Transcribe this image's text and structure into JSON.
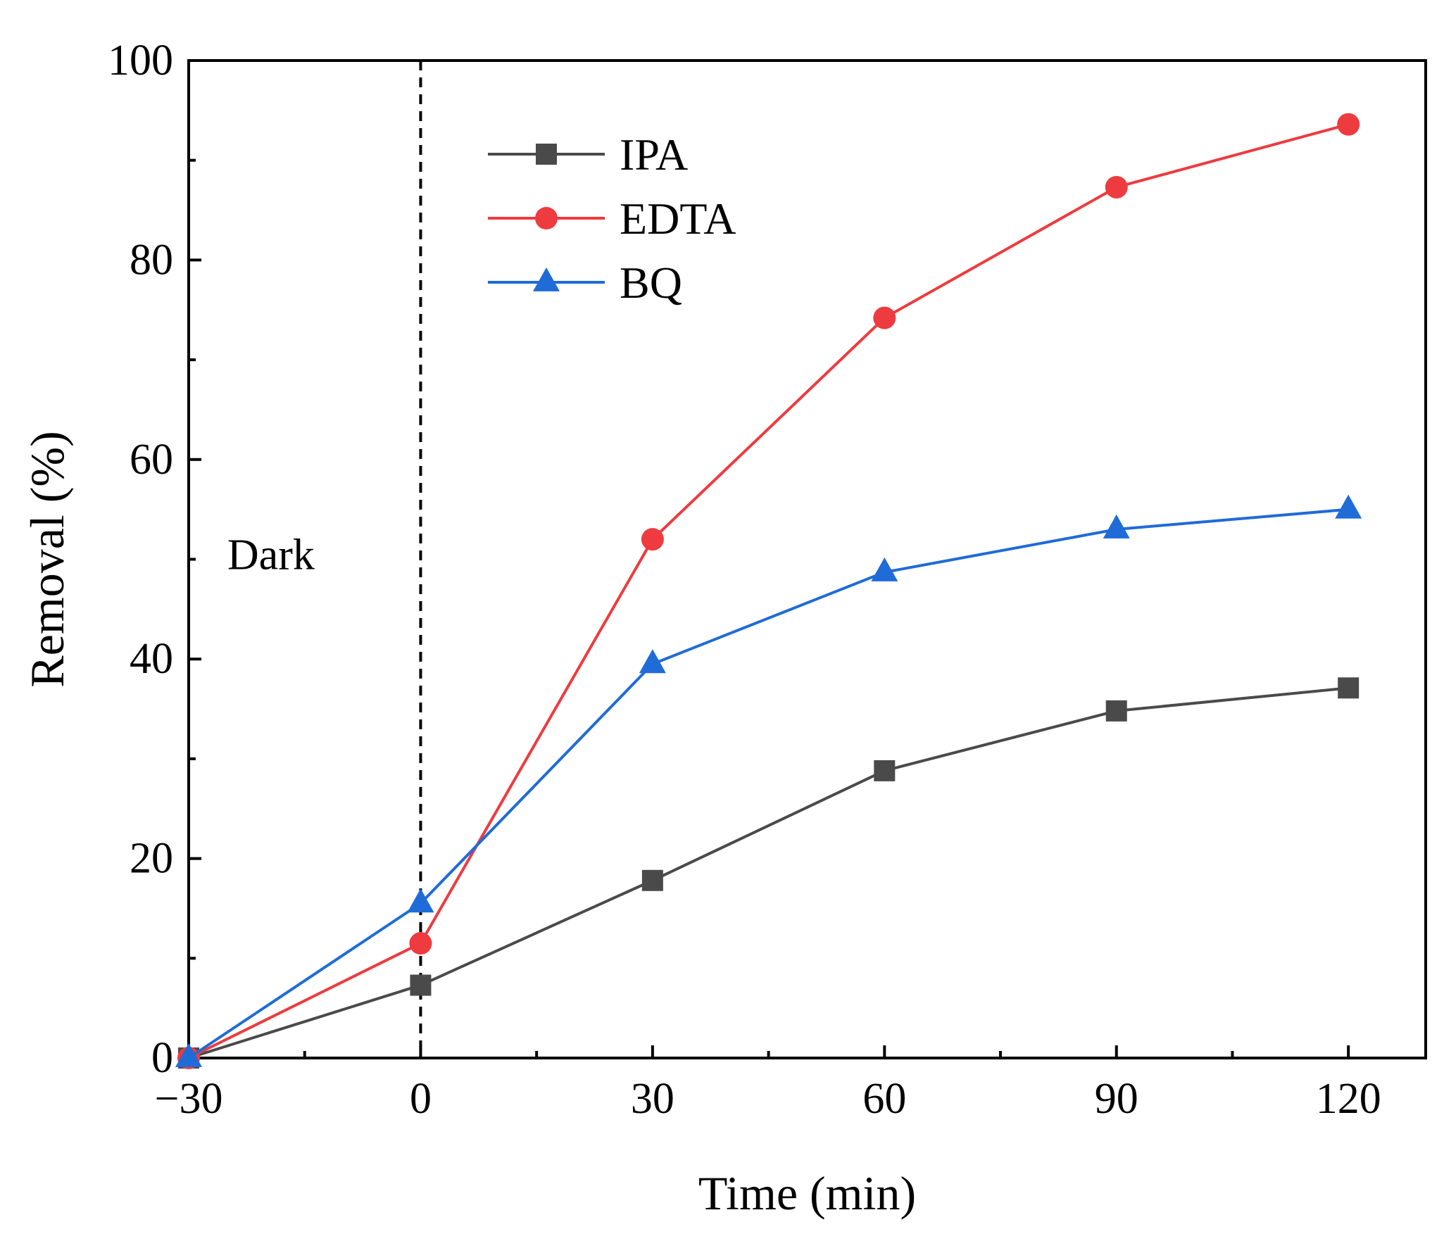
{
  "chart_data": {
    "type": "line",
    "title": "",
    "xlabel": "Time (min)",
    "ylabel": "Removal (%)",
    "x": [
      -30,
      0,
      30,
      60,
      90,
      120
    ],
    "xlim": [
      -30,
      130
    ],
    "ylim": [
      0,
      100
    ],
    "xticks": [
      -30,
      0,
      30,
      60,
      90,
      120
    ],
    "xtick_labels": [
      "−30",
      "0",
      "30",
      "60",
      "90",
      "120"
    ],
    "xminor": [
      -15,
      15,
      45,
      75,
      105
    ],
    "yticks": [
      0,
      20,
      40,
      60,
      80,
      100
    ],
    "ytick_labels": [
      "0",
      "20",
      "40",
      "60",
      "80",
      "100"
    ],
    "yminor": [
      10,
      30,
      50,
      70,
      90
    ],
    "grid": false,
    "legend_position": "top-center",
    "series": [
      {
        "name": "IPA",
        "marker": "square",
        "color": "#4a4a4a",
        "values": [
          0,
          7.3,
          17.8,
          28.8,
          34.8,
          37.1
        ]
      },
      {
        "name": "EDTA",
        "marker": "circle",
        "color": "#ee3b3f",
        "values": [
          0,
          11.5,
          52.0,
          74.2,
          87.3,
          93.6
        ]
      },
      {
        "name": "BQ",
        "marker": "triangle",
        "color": "#1f6bd8",
        "values": [
          0,
          15.5,
          39.5,
          48.7,
          53.0,
          55.0
        ]
      }
    ],
    "annotations": [
      {
        "text": "Dark",
        "x": -25,
        "y": 49
      }
    ],
    "vline": {
      "x": 0,
      "style": "dashed"
    }
  }
}
